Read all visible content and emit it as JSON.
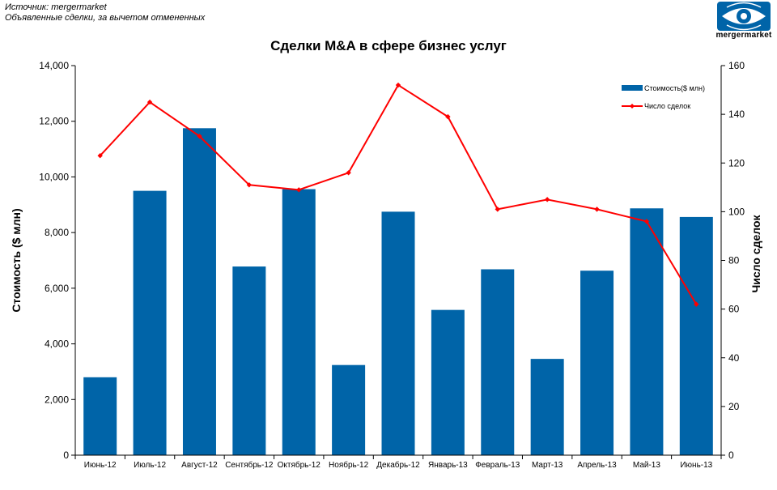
{
  "source": {
    "line1": "Источник: mergermarket",
    "line2": "Объявленные сделки, за вычетом отмененных"
  },
  "logo": {
    "text": "mergermarket",
    "icon": "eye-logo-icon",
    "color": "#0064a8"
  },
  "chart_data": {
    "type": "bar",
    "title": "Сделки M&A в сфере бизнес услуг",
    "categories": [
      "Июнь-12",
      "Июль-12",
      "Август-12",
      "Сентябрь-12",
      "Октябрь-12",
      "Ноябрь-12",
      "Декабрь-12",
      "Январь-13",
      "Февраль-13",
      "Март-13",
      "Апрель-13",
      "Май-13",
      "Июнь-13"
    ],
    "series": [
      {
        "name": "Стоимость($ млн)",
        "type": "bar",
        "axis": "left",
        "color": "#0064a8",
        "values": [
          2800,
          9500,
          11750,
          6780,
          9560,
          3240,
          8750,
          5220,
          6680,
          3460,
          6630,
          8870,
          8560
        ]
      },
      {
        "name": "Число сделок",
        "type": "line",
        "axis": "right",
        "color": "#ff0000",
        "values": [
          123,
          145,
          131,
          111,
          109,
          116,
          152,
          139,
          101,
          105,
          101,
          96,
          62
        ]
      }
    ],
    "ylabel": "Стоимость ($ млн)",
    "y2label": "Число сделок",
    "ylim": [
      0,
      14000
    ],
    "y2lim": [
      0,
      160
    ],
    "yticks": [
      0,
      2000,
      4000,
      6000,
      8000,
      10000,
      12000,
      14000
    ],
    "y2ticks": [
      0,
      20,
      40,
      60,
      80,
      100,
      120,
      140,
      160
    ],
    "ytick_labels": [
      "0",
      "2,000",
      "4,000",
      "6,000",
      "8,000",
      "10,000",
      "12,000",
      "14,000"
    ],
    "grid": false,
    "legend_position": "top-right"
  }
}
